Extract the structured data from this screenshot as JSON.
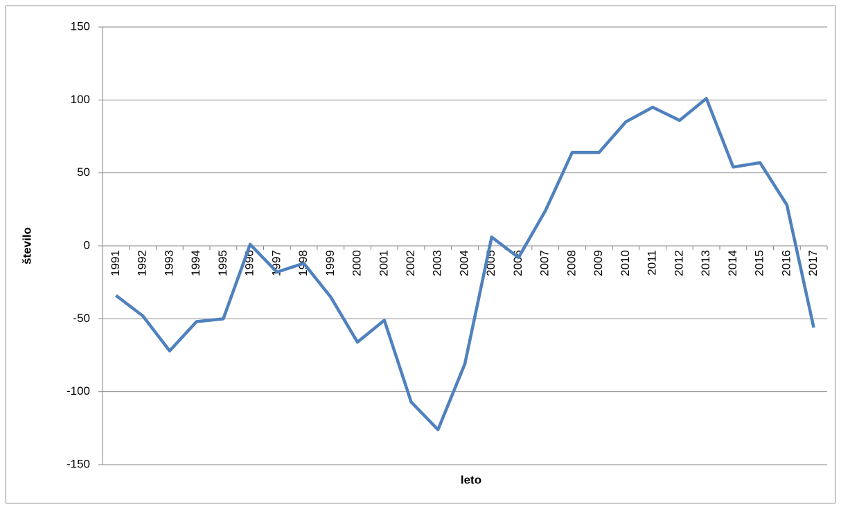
{
  "chart_data": {
    "type": "line",
    "x_label": "leto",
    "y_label": "število",
    "categories": [
      "1991",
      "1992",
      "1993",
      "1994",
      "1995",
      "1996",
      "1997",
      "1998",
      "1999",
      "2000",
      "2001",
      "2002",
      "2003",
      "2004",
      "2005",
      "2006",
      "2007",
      "2008",
      "2009",
      "2010",
      "2011",
      "2012",
      "2013",
      "2014",
      "2015",
      "2016",
      "2017"
    ],
    "values": [
      -34,
      -48,
      -72,
      -52,
      -50,
      1,
      -18,
      -12,
      -35,
      -66,
      -51,
      -107,
      -126,
      -81,
      6,
      -8,
      24,
      64,
      64,
      85,
      95,
      86,
      101,
      54,
      57,
      28,
      -56
    ],
    "color": "#4f81bd",
    "ylim": [
      -150,
      150
    ],
    "yticks": [
      -150,
      -100,
      -50,
      0,
      50,
      100,
      150
    ],
    "grid": true
  }
}
